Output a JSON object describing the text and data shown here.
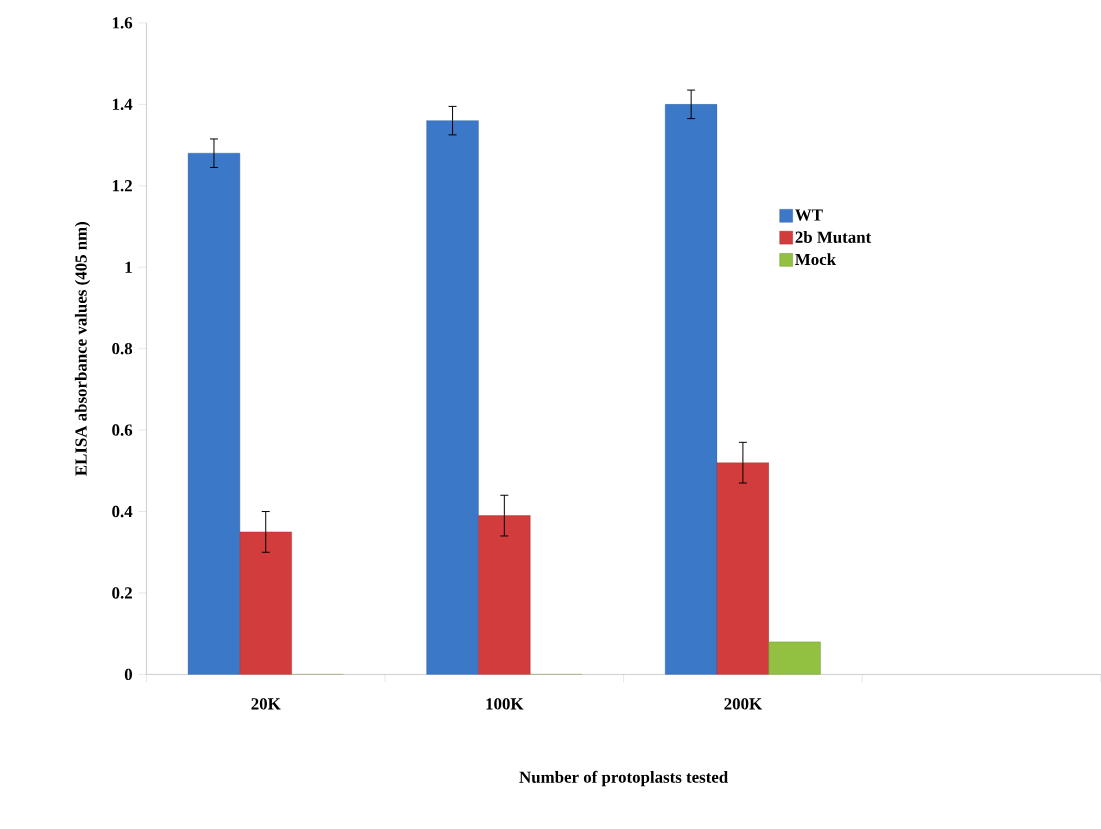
{
  "chart_data": {
    "type": "bar",
    "xlabel": "Number of protoplasts tested",
    "ylabel": "ELISA absorbance values (405 nm)",
    "categories": [
      "20K",
      "100K",
      "200K",
      null
    ],
    "series": [
      {
        "name": "WT",
        "color": "#3c78c8",
        "values": [
          1.28,
          1.36,
          1.4,
          null
        ],
        "errors": [
          0.035,
          0.035,
          0.035,
          null
        ]
      },
      {
        "name": "2b Mutant",
        "color": "#d23c3c",
        "values": [
          0.35,
          0.39,
          0.52,
          null
        ],
        "errors": [
          0.05,
          0.05,
          0.05,
          null
        ]
      },
      {
        "name": "Mock",
        "color": "#92c040",
        "values": [
          0,
          0,
          0.08,
          null
        ]
      }
    ],
    "ylim": [
      0,
      1.6
    ],
    "yticks": [
      0,
      0.2,
      0.4,
      0.6,
      0.8,
      1,
      1.2,
      1.4,
      1.6
    ],
    "legend": "right",
    "grid": false
  }
}
